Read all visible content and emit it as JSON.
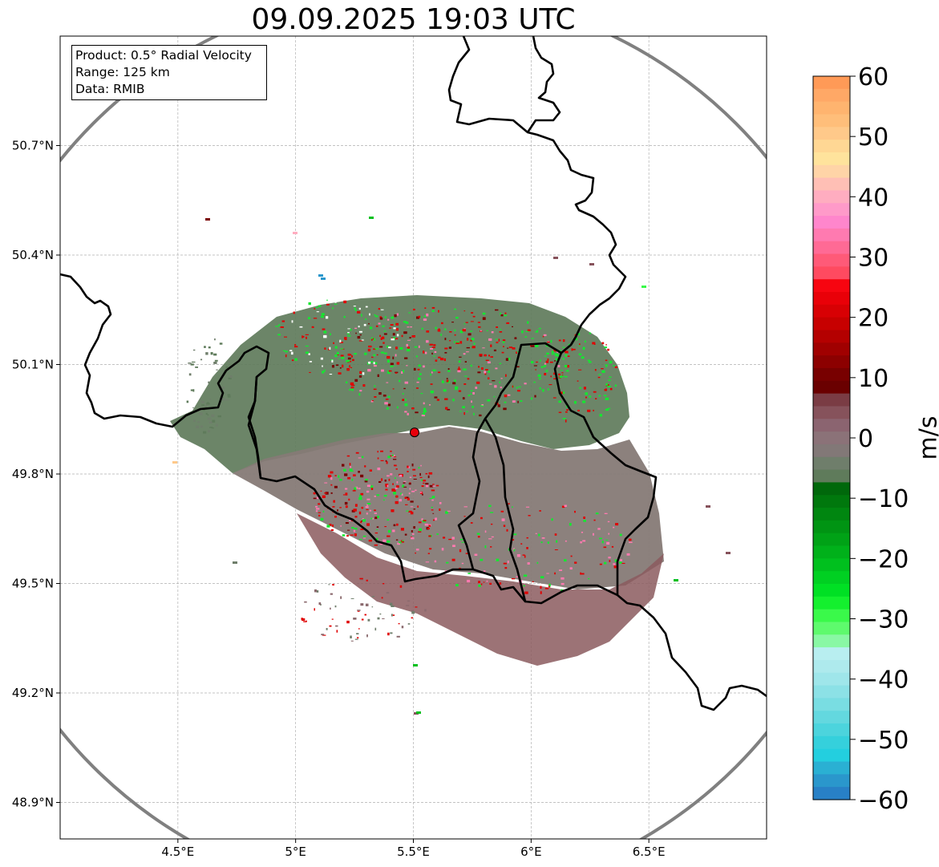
{
  "title": "09.09.2025 19:03 UTC",
  "info": {
    "product": "Product: 0.5° Radial Velocity",
    "range": "Range: 125 km",
    "data": "Data: RMIB"
  },
  "map": {
    "lon_range": [
      4.0,
      7.0
    ],
    "lat_range": [
      48.8,
      51.0
    ],
    "x_ticks": [
      "4.5°E",
      "5°E",
      "5.5°E",
      "6°E",
      "6.5°E"
    ],
    "x_tick_values": [
      4.5,
      5.0,
      5.5,
      6.0,
      6.5
    ],
    "y_ticks": [
      "50.7°N",
      "50.4°N",
      "50.1°N",
      "49.8°N",
      "49.5°N",
      "49.2°N",
      "48.9°N"
    ],
    "y_tick_values": [
      50.7,
      50.4,
      50.1,
      49.8,
      49.5,
      49.2,
      48.9
    ],
    "grid": true,
    "radar_site": {
      "lon": 5.505,
      "lat": 49.914,
      "color": "#e8000b"
    },
    "range_ring_km": 125,
    "ring_color": "#808080",
    "border_color": "#000000"
  },
  "colorbar": {
    "label": "m/s",
    "min": -60,
    "max": 60,
    "ticks": [
      "60",
      "50",
      "40",
      "30",
      "20",
      "10",
      "0",
      "−10",
      "−20",
      "−30",
      "−40",
      "−50",
      "−60"
    ],
    "tick_values": [
      60,
      50,
      40,
      30,
      20,
      10,
      0,
      -10,
      -20,
      -30,
      -40,
      -50,
      -60
    ],
    "colors_top_to_bottom": [
      "#ff9a57",
      "#ffa866",
      "#ffb46f",
      "#ffbe7a",
      "#ffc98a",
      "#ffd794",
      "#ffe39c",
      "#ffd4a7",
      "#ffbfb5",
      "#ffadc0",
      "#ff9ac9",
      "#ff86cc",
      "#ff7ab0",
      "#ff6a95",
      "#ff5a78",
      "#ff4a60",
      "#f70510",
      "#e90008",
      "#d80004",
      "#c70000",
      "#b40000",
      "#a00000",
      "#8c0000",
      "#780000",
      "#6a0000",
      "#7a3c44",
      "#86525b",
      "#8b6470",
      "#8b7278",
      "#827877",
      "#6f7e6b",
      "#5f7b5b",
      "#00680b",
      "#00780d",
      "#008610",
      "#009413",
      "#00a216",
      "#00b11a",
      "#00c01e",
      "#00d022",
      "#00e024",
      "#14f02e",
      "#3af94a",
      "#5efa6d",
      "#89f8a4",
      "#b8eef0",
      "#aeeaed",
      "#9fe6ea",
      "#8ce1e6",
      "#79dde2",
      "#63d8df",
      "#4cd4dd",
      "#35d0dc",
      "#23cfdf",
      "#2ab0d3",
      "#2a97cc",
      "#2880c6"
    ]
  },
  "echo_colors": {
    "outbound_dark": "#8b5a5e",
    "outbound_mid": "#8b6a6e",
    "zero": "#867a76",
    "inbound": "#5f7b5b",
    "red_speckle": "#e00000",
    "dark_red_speckle": "#7a0000",
    "green_speckle": "#14e830",
    "pink_speckle": "#ff7ab0"
  }
}
